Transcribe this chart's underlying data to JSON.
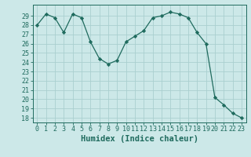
{
  "x": [
    0,
    1,
    2,
    3,
    4,
    5,
    6,
    7,
    8,
    9,
    10,
    11,
    12,
    13,
    14,
    15,
    16,
    17,
    18,
    19,
    20,
    21,
    22,
    23
  ],
  "y": [
    28.0,
    29.2,
    28.8,
    27.2,
    29.2,
    28.8,
    26.2,
    24.4,
    23.8,
    24.2,
    26.2,
    26.8,
    27.4,
    28.8,
    29.0,
    29.4,
    29.2,
    28.8,
    27.2,
    26.0,
    20.2,
    19.4,
    18.5,
    18.0
  ],
  "line_color": "#1f6b5e",
  "marker": "D",
  "marker_size": 2.2,
  "bg_color": "#cce8e8",
  "grid_color": "#aacfcf",
  "xlabel": "Humidex (Indice chaleur)",
  "ylim": [
    17.5,
    30.2
  ],
  "xlim": [
    -0.5,
    23.5
  ],
  "yticks": [
    18,
    19,
    20,
    21,
    22,
    23,
    24,
    25,
    26,
    27,
    28,
    29
  ],
  "xticks": [
    0,
    1,
    2,
    3,
    4,
    5,
    6,
    7,
    8,
    9,
    10,
    11,
    12,
    13,
    14,
    15,
    16,
    17,
    18,
    19,
    20,
    21,
    22,
    23
  ],
  "tick_fontsize": 6.0,
  "xlabel_fontsize": 7.5,
  "label_color": "#1f6b5e"
}
